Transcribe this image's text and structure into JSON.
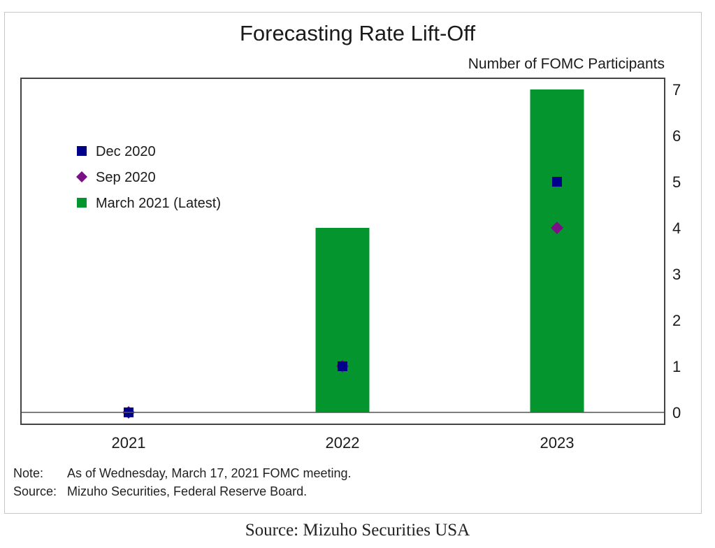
{
  "chart_data": {
    "type": "bar",
    "title": "Forecasting Rate Lift-Off",
    "ylabel": "Number of FOMC Participants",
    "xlabel": "",
    "categories": [
      "2021",
      "2022",
      "2023"
    ],
    "ylim": [
      0,
      7
    ],
    "yticks": [
      0,
      1,
      2,
      3,
      4,
      5,
      6,
      7
    ],
    "y_axis_side": "right",
    "grid": false,
    "legend_position": "upper-left",
    "series": [
      {
        "name": "Dec 2020",
        "kind": "marker",
        "marker": "square",
        "color": "#00008b",
        "values": [
          0,
          1,
          5
        ]
      },
      {
        "name": "Sep 2020",
        "kind": "marker",
        "marker": "diamond",
        "color": "#7b0f86",
        "values": [
          0,
          1,
          4
        ]
      },
      {
        "name": "March 2021 (Latest)",
        "kind": "bar",
        "color": "#05952f",
        "values": [
          0,
          4,
          7
        ]
      }
    ]
  },
  "notes": {
    "note_label": "Note:",
    "note_text": "As of Wednesday, March 17, 2021 FOMC meeting.",
    "source_label": "Source:",
    "source_text": "Mizuho Securities, Federal Reserve Board."
  },
  "caption": "Source: Mizuho Securities USA"
}
